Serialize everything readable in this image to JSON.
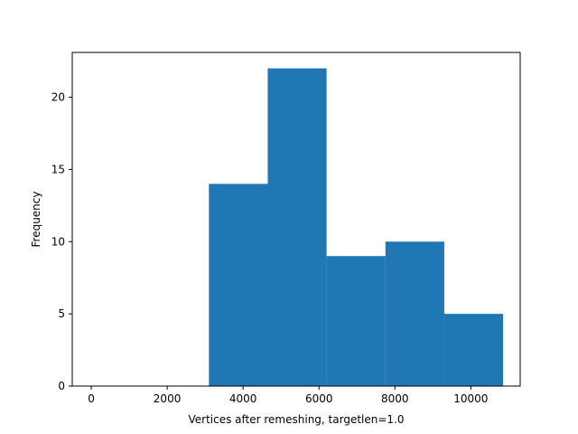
{
  "chart_data": {
    "type": "bar",
    "subtype": "histogram",
    "title": "",
    "xlabel": "Vertices after remeshing, targetlen=1.0",
    "ylabel": "Frequency",
    "xlim": [
      -500,
      11300
    ],
    "ylim": [
      0,
      23.1
    ],
    "grid": false,
    "legend": "none",
    "bar_color": "#1f77b4",
    "bins": [
      {
        "x0": 3100,
        "x1": 4650,
        "value": 14
      },
      {
        "x0": 4650,
        "x1": 6200,
        "value": 22
      },
      {
        "x0": 6200,
        "x1": 7750,
        "value": 9
      },
      {
        "x0": 7750,
        "x1": 9300,
        "value": 10
      },
      {
        "x0": 9300,
        "x1": 10850,
        "value": 5
      }
    ],
    "xticks": [
      0,
      2000,
      4000,
      6000,
      8000,
      10000
    ],
    "xtick_labels": [
      "0",
      "2000",
      "4000",
      "6000",
      "8000",
      "10000"
    ],
    "yticks": [
      0,
      5,
      10,
      15,
      20
    ],
    "ytick_labels": [
      "0",
      "5",
      "10",
      "15",
      "20"
    ]
  }
}
